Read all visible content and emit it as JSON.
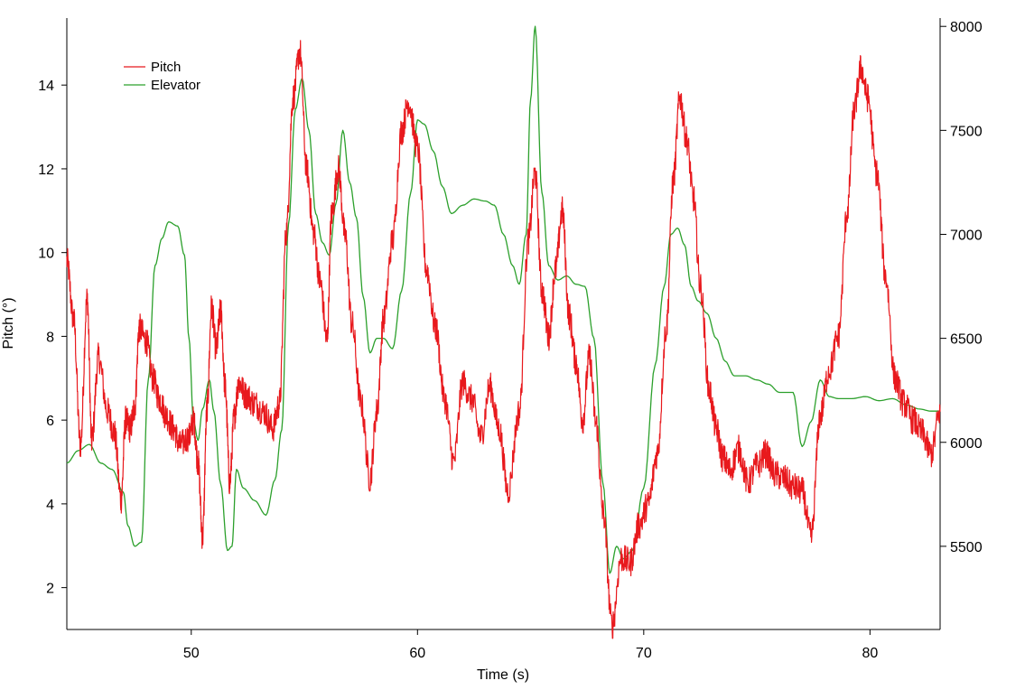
{
  "chart_data": {
    "type": "line",
    "title": "",
    "xlabel": "Time (s)",
    "ylabel": "Pitch (°)",
    "y2label": "",
    "xlim": [
      44.5,
      83.1
    ],
    "ylim": [
      1.0,
      15.6
    ],
    "y2lim": [
      5100,
      8040
    ],
    "x_ticks": [
      50,
      60,
      70,
      80
    ],
    "y_ticks": [
      2,
      4,
      6,
      8,
      10,
      12,
      14
    ],
    "y2_ticks": [
      5500,
      6000,
      6500,
      7000,
      7500,
      8000
    ],
    "grid": false,
    "legend": "top-left",
    "series": [
      {
        "name": "Pitch",
        "axis": "left",
        "color": "#e8191d",
        "noise": 0.35,
        "x": [
          44.5,
          44.8,
          45.1,
          45.4,
          45.6,
          45.9,
          46.3,
          46.6,
          46.9,
          47.1,
          47.3,
          47.5,
          47.7,
          48.0,
          48.3,
          48.6,
          48.9,
          49.2,
          49.5,
          49.9,
          50.1,
          50.3,
          50.5,
          50.7,
          50.9,
          51.1,
          51.3,
          51.5,
          51.7,
          51.9,
          52.1,
          52.4,
          52.8,
          53.2,
          53.6,
          53.9,
          54.2,
          54.5,
          54.8,
          55.1,
          55.4,
          55.7,
          56.0,
          56.2,
          56.5,
          56.8,
          57.1,
          57.5,
          57.9,
          58.2,
          58.5,
          58.9,
          59.3,
          59.6,
          60.0,
          60.4,
          60.8,
          61.2,
          61.6,
          62.0,
          62.4,
          62.8,
          63.2,
          63.6,
          64.0,
          64.5,
          64.9,
          65.2,
          65.5,
          65.8,
          66.1,
          66.4,
          66.7,
          67.0,
          67.3,
          67.6,
          67.9,
          68.2,
          68.6,
          69.0,
          69.4,
          69.8,
          70.2,
          70.6,
          71.0,
          71.3,
          71.6,
          71.9,
          72.2,
          72.5,
          72.9,
          73.2,
          73.5,
          73.8,
          74.2,
          74.6,
          75.0,
          75.4,
          75.8,
          76.2,
          76.6,
          77.0,
          77.4,
          77.8,
          78.2,
          78.6,
          79.0,
          79.3,
          79.6,
          79.9,
          80.3,
          80.7,
          81.1,
          81.5,
          81.9,
          82.3,
          82.7,
          83.1
        ],
        "values": [
          9.8,
          8.4,
          5.4,
          8.9,
          5.5,
          7.5,
          6.2,
          5.7,
          4.1,
          6.0,
          5.8,
          6.3,
          8.2,
          7.9,
          7.0,
          6.5,
          6.1,
          5.8,
          5.4,
          5.6,
          6.0,
          5.0,
          3.2,
          6.3,
          8.7,
          7.7,
          8.6,
          6.8,
          4.5,
          6.1,
          6.9,
          6.6,
          6.4,
          6.2,
          5.8,
          6.4,
          10.5,
          13.7,
          14.8,
          12.0,
          10.5,
          9.3,
          7.9,
          10.9,
          12.0,
          10.4,
          8.3,
          6.4,
          4.6,
          6.2,
          8.4,
          10.3,
          12.9,
          13.6,
          12.5,
          9.6,
          8.2,
          6.5,
          5.0,
          6.9,
          6.5,
          5.6,
          6.8,
          5.8,
          4.3,
          6.2,
          10.3,
          11.9,
          9.1,
          8.0,
          9.6,
          11.0,
          8.5,
          7.4,
          6.0,
          7.5,
          5.9,
          3.8,
          1.1,
          2.7,
          2.6,
          3.5,
          4.0,
          5.2,
          8.2,
          11.7,
          13.7,
          12.7,
          11.3,
          9.2,
          6.7,
          5.8,
          5.1,
          4.8,
          5.3,
          4.5,
          4.9,
          5.2,
          4.7,
          4.6,
          4.4,
          4.3,
          3.2,
          6.1,
          7.2,
          8.0,
          11.0,
          13.4,
          14.4,
          13.7,
          11.9,
          9.4,
          7.0,
          6.4,
          6.0,
          5.7,
          5.2,
          6.2
        ]
      },
      {
        "name": "Elevator",
        "axis": "right",
        "color": "#2ca02c",
        "noise": 0,
        "x": [
          44.5,
          45.0,
          45.5,
          46.0,
          46.5,
          47.0,
          47.2,
          47.5,
          47.8,
          48.1,
          48.4,
          48.7,
          49.0,
          49.4,
          49.7,
          49.9,
          50.1,
          50.3,
          50.5,
          50.8,
          51.0,
          51.3,
          51.6,
          51.8,
          52.0,
          52.3,
          52.8,
          53.3,
          53.7,
          54.0,
          54.3,
          54.6,
          54.9,
          55.2,
          55.5,
          55.8,
          56.1,
          56.4,
          56.7,
          57.0,
          57.3,
          57.6,
          57.9,
          58.2,
          58.5,
          58.9,
          59.3,
          59.7,
          60.0,
          60.3,
          60.7,
          61.1,
          61.5,
          62.0,
          62.5,
          63.0,
          63.4,
          63.8,
          64.2,
          64.5,
          64.8,
          65.0,
          65.2,
          65.5,
          65.8,
          66.2,
          66.6,
          67.0,
          67.4,
          67.8,
          68.2,
          68.5,
          68.8,
          69.1,
          69.5,
          70.0,
          70.5,
          70.9,
          71.2,
          71.5,
          71.8,
          72.1,
          72.4,
          72.8,
          73.2,
          73.6,
          74.0,
          74.5,
          75.0,
          75.5,
          76.0,
          76.6,
          77.0,
          77.4,
          77.8,
          78.2,
          78.6,
          79.2,
          79.8,
          80.4,
          81.0,
          81.6,
          82.2,
          82.7,
          83.1
        ],
        "values": [
          5900,
          5960,
          5990,
          5900,
          5870,
          5760,
          5600,
          5500,
          5520,
          6300,
          6850,
          6980,
          7060,
          7040,
          6900,
          6500,
          6100,
          6010,
          6160,
          6300,
          6150,
          5800,
          5480,
          5500,
          5870,
          5780,
          5720,
          5650,
          5820,
          6060,
          7050,
          7600,
          7750,
          7500,
          7100,
          6960,
          6900,
          7150,
          7500,
          7250,
          7080,
          6700,
          6430,
          6500,
          6500,
          6450,
          6730,
          7200,
          7550,
          7530,
          7400,
          7230,
          7100,
          7140,
          7170,
          7160,
          7140,
          7000,
          6850,
          6760,
          7000,
          7650,
          8000,
          7200,
          6850,
          6780,
          6800,
          6760,
          6750,
          6500,
          5800,
          5370,
          5500,
          5440,
          5480,
          5780,
          6370,
          6750,
          7000,
          7030,
          6950,
          6750,
          6680,
          6620,
          6500,
          6390,
          6320,
          6320,
          6300,
          6280,
          6240,
          6240,
          5980,
          6100,
          6300,
          6220,
          6210,
          6210,
          6220,
          6200,
          6210,
          6180,
          6160,
          6150,
          6150
        ]
      }
    ]
  }
}
